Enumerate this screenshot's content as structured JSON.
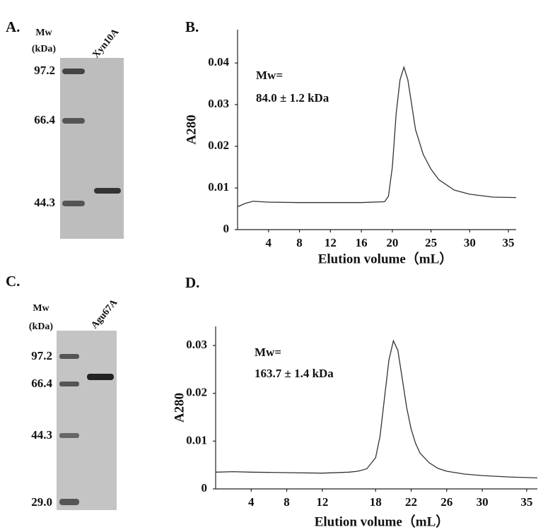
{
  "gels": [
    {
      "panel": "A.",
      "mw_label": [
        "Mw",
        "(kDa)"
      ],
      "markers": [
        "97.2",
        "66.4",
        "44.3"
      ],
      "lane": "Xyn10A"
    },
    {
      "panel": "C.",
      "mw_label": [
        "Mw",
        "(kDa)"
      ],
      "markers": [
        "97.2",
        "66.4",
        "44.3",
        "29.0"
      ],
      "lane": "Agu67A"
    }
  ],
  "chart_data": [
    {
      "type": "line",
      "panel": "B.",
      "annotation": [
        "Mw=",
        "84.0 ± 1.2 kDa"
      ],
      "x_label": "Elution volume（mL）",
      "y_label": "A280",
      "xlim": [
        0,
        36
      ],
      "ylim": [
        0,
        0.048
      ],
      "xticks": [
        4,
        8,
        12,
        16,
        20,
        25,
        30,
        35
      ],
      "yticks": [
        0,
        0.01,
        0.02,
        0.03,
        0.04
      ],
      "series": [
        {
          "color": "#333333",
          "x": [
            0,
            1,
            2,
            4,
            8,
            12,
            16,
            19,
            19.5,
            20,
            20.5,
            21,
            21.5,
            22,
            22.5,
            23,
            24,
            25,
            26,
            28,
            30,
            33,
            36
          ],
          "values": [
            0.0055,
            0.0063,
            0.0068,
            0.0066,
            0.0065,
            0.0065,
            0.0065,
            0.0067,
            0.008,
            0.015,
            0.028,
            0.036,
            0.039,
            0.036,
            0.03,
            0.024,
            0.018,
            0.0145,
            0.012,
            0.0095,
            0.0085,
            0.0078,
            0.0077
          ]
        }
      ]
    },
    {
      "type": "line",
      "panel": "D.",
      "annotation": [
        "Mw=",
        "163.7 ± 1.4 kDa"
      ],
      "x_label": "Elution volume（mL）",
      "y_label": "A280",
      "xlim": [
        0,
        36.2
      ],
      "ylim": [
        0,
        0.034
      ],
      "xticks": [
        4,
        8,
        12,
        18,
        22,
        26,
        30,
        35
      ],
      "yticks": [
        0,
        0.01,
        0.02,
        0.03
      ],
      "series": [
        {
          "color": "#333333",
          "x": [
            0,
            2,
            4,
            8,
            12,
            15,
            16,
            17,
            18,
            18.5,
            19,
            19.5,
            20,
            20.5,
            21,
            21.5,
            22,
            22.5,
            23,
            24,
            25,
            26,
            28,
            30,
            33,
            36.2
          ],
          "values": [
            0.0035,
            0.0036,
            0.0035,
            0.0034,
            0.0033,
            0.0035,
            0.0037,
            0.0042,
            0.0065,
            0.011,
            0.019,
            0.027,
            0.031,
            0.029,
            0.023,
            0.017,
            0.0125,
            0.0095,
            0.0075,
            0.0055,
            0.0043,
            0.0037,
            0.0031,
            0.0028,
            0.0025,
            0.0023
          ]
        }
      ]
    }
  ]
}
